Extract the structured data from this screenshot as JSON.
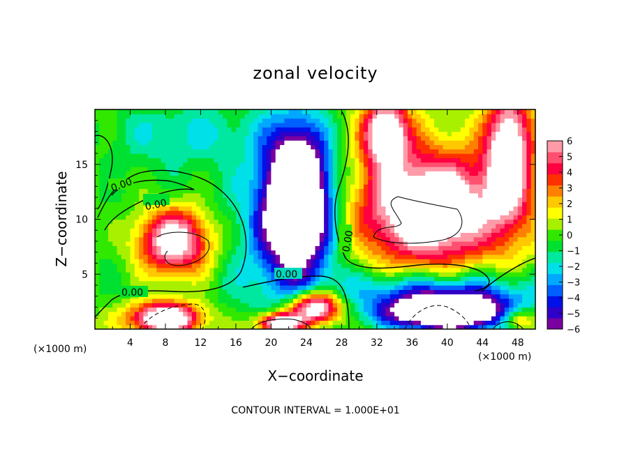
{
  "chart_data": {
    "type": "heatmap",
    "title": "zonal velocity",
    "xlabel": "X−coordinate",
    "ylabel": "Z−coordinate",
    "x_unit": "(×1000 m)",
    "z_unit": "(×1000 m)",
    "xlim": [
      0,
      50
    ],
    "zlim": [
      0,
      20
    ],
    "x_ticks": [
      "4",
      "8",
      "12",
      "16",
      "20",
      "24",
      "28",
      "32",
      "36",
      "40",
      "44",
      "48"
    ],
    "z_ticks": [
      "5",
      "10",
      "15"
    ],
    "colorbar": {
      "ticks": [
        "6",
        "5",
        "4",
        "3",
        "2",
        "1",
        "0",
        "−1",
        "−2",
        "−3",
        "−4",
        "−5",
        "−6"
      ],
      "range": [
        -6,
        6
      ],
      "colors": [
        "#7a00a0",
        "#3000c8",
        "#0010e8",
        "#0060ff",
        "#00a8ff",
        "#00e0e8",
        "#00e8a0",
        "#00e030",
        "#30e800",
        "#a8f000",
        "#ffff00",
        "#ffc800",
        "#ff8000",
        "#ff3000",
        "#ff0040",
        "#ff5070",
        "#ff9aa8"
      ],
      "over_color": "#ffffff",
      "under_color": "#ffffff"
    },
    "contour_labels": [
      "0.00",
      "0.00",
      "0.00",
      "0.00",
      "0.00"
    ],
    "contour_interval": "CONTOUR INTERVAL =  1.000E+01",
    "field_features": [
      {
        "x": 9,
        "z": 8,
        "u": 9,
        "sx": 4.5,
        "sz": 3.2
      },
      {
        "x": 9,
        "z": 8,
        "u": -2,
        "sx": 9,
        "sz": 6
      },
      {
        "x": 23,
        "z": 12,
        "u": -11,
        "sx": 3.5,
        "sz": 6
      },
      {
        "x": 22,
        "z": 9,
        "u": -3,
        "sx": 6,
        "sz": 9
      },
      {
        "x": 25,
        "z": 2,
        "u": 9,
        "sx": 3,
        "sz": 1.5
      },
      {
        "x": 21,
        "z": 0.5,
        "u": 9,
        "sx": 2.5,
        "sz": 1
      },
      {
        "x": 40,
        "z": 1.5,
        "u": -11,
        "sx": 7,
        "sz": 1.6
      },
      {
        "x": 39,
        "z": 3.5,
        "u": -4,
        "sx": 12,
        "sz": 2
      },
      {
        "x": 38,
        "z": 11,
        "u": 9,
        "sx": 8,
        "sz": 5
      },
      {
        "x": 33,
        "z": 18,
        "u": 8,
        "sx": 2.5,
        "sz": 3
      },
      {
        "x": 47,
        "z": 16,
        "u": 8,
        "sx": 2.5,
        "sz": 6
      },
      {
        "x": 8,
        "z": 1,
        "u": 9,
        "sx": 4,
        "sz": 1.5
      },
      {
        "x": 10,
        "z": 18,
        "u": -2,
        "sx": 10,
        "sz": 3
      },
      {
        "x": 48,
        "z": 1,
        "u": 4,
        "sx": 2,
        "sz": 1
      }
    ]
  }
}
